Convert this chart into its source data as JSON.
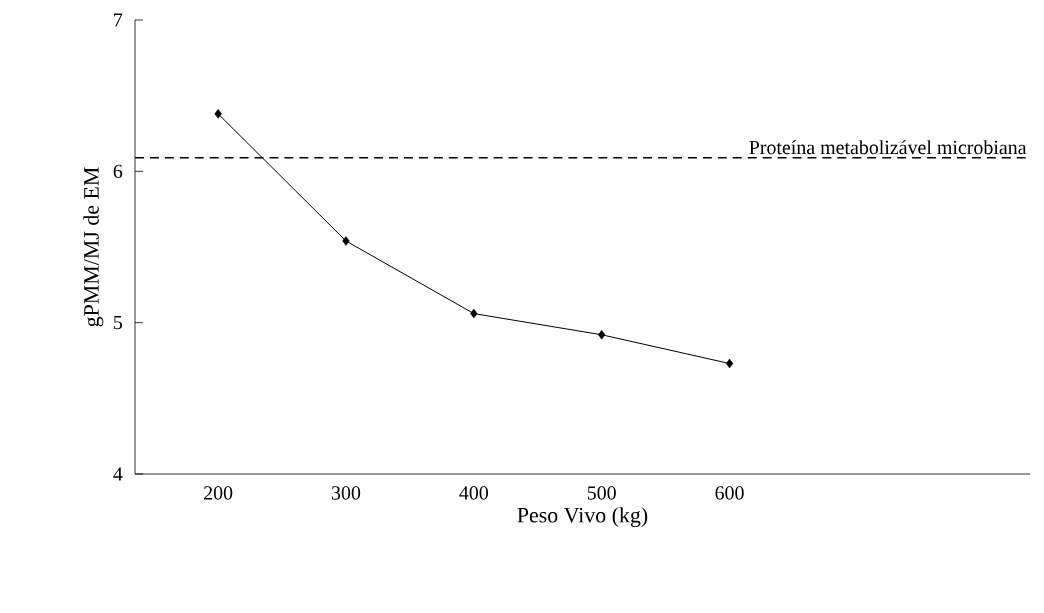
{
  "chart_data": {
    "type": "line",
    "xlabel": "Peso Vivo (kg)",
    "ylabel": "gPMM/MJ de EM",
    "x": [
      200,
      300,
      400,
      500,
      600
    ],
    "series": [
      {
        "color": "#000000",
        "values": [
          6.38,
          5.54,
          5.06,
          4.92,
          4.73
        ]
      }
    ],
    "xlim": [
      135,
      835
    ],
    "xticks": [
      200,
      300,
      400,
      500,
      600
    ],
    "ylim": [
      4,
      7
    ],
    "yticks": [
      4,
      5,
      6,
      7
    ],
    "ref_lines": [
      {
        "axis": "y",
        "value": 6.09,
        "label": "Proteína metabolizável microbiana",
        "line_style": "dashed",
        "color": "#000000"
      }
    ],
    "marker": "diamond",
    "line_style": "solid"
  }
}
